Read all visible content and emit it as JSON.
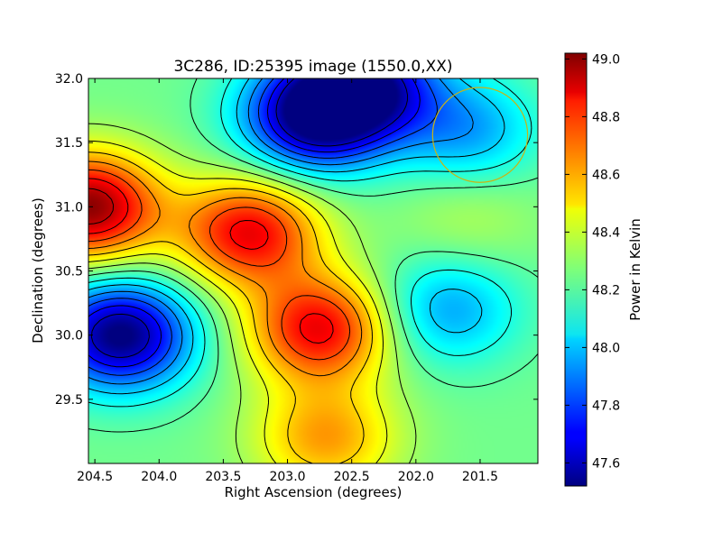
{
  "chart_data": {
    "type": "heatmap",
    "title": "3C286, ID:25395 image (1550.0,XX)",
    "xlabel": "Right Ascension (degrees)",
    "ylabel": "Declination (degrees)",
    "xlim": [
      204.55,
      201.05
    ],
    "ylim": [
      29.0,
      32.0
    ],
    "x_ticks": [
      {
        "value": 204.5,
        "label": "204.5"
      },
      {
        "value": 204.0,
        "label": "204.0"
      },
      {
        "value": 203.5,
        "label": "203.5"
      },
      {
        "value": 203.0,
        "label": "203.0"
      },
      {
        "value": 202.5,
        "label": "202.5"
      },
      {
        "value": 202.0,
        "label": "202.0"
      },
      {
        "value": 201.5,
        "label": "201.5"
      }
    ],
    "y_ticks": [
      {
        "value": 29.5,
        "label": "29.5"
      },
      {
        "value": 30.0,
        "label": "30.0"
      },
      {
        "value": 30.5,
        "label": "30.5"
      },
      {
        "value": 31.0,
        "label": "31.0"
      },
      {
        "value": 31.5,
        "label": "31.5"
      },
      {
        "value": 32.0,
        "label": "32.0"
      }
    ],
    "colorbar": {
      "label": "Power in Kelvin",
      "range": [
        47.52,
        49.02
      ],
      "colormap": "jet",
      "ticks": [
        {
          "value": 47.6,
          "label": "47.6"
        },
        {
          "value": 47.8,
          "label": "47.8"
        },
        {
          "value": 48.0,
          "label": "48.0"
        },
        {
          "value": 48.2,
          "label": "48.2"
        },
        {
          "value": 48.4,
          "label": "48.4"
        },
        {
          "value": 48.6,
          "label": "48.6"
        },
        {
          "value": 48.8,
          "label": "48.8"
        },
        {
          "value": 49.0,
          "label": "49.0"
        }
      ]
    },
    "base_level": 48.25,
    "features": [
      {
        "kind": "max",
        "ra": 204.55,
        "dec": 31.0,
        "peak": 49.0
      },
      {
        "kind": "max",
        "ra": 203.3,
        "dec": 30.8,
        "peak": 48.85
      },
      {
        "kind": "max",
        "ra": 202.75,
        "dec": 30.05,
        "peak": 48.85
      },
      {
        "kind": "max",
        "ra": 202.7,
        "dec": 29.2,
        "peak": 48.6
      },
      {
        "kind": "min",
        "ra": 204.3,
        "dec": 30.0,
        "peak": 47.5
      },
      {
        "kind": "min",
        "ra": 202.8,
        "dec": 31.7,
        "peak": 47.55
      },
      {
        "kind": "min",
        "ra": 202.4,
        "dec": 31.95,
        "peak": 47.6
      },
      {
        "kind": "min",
        "ra": 201.75,
        "dec": 30.2,
        "peak": 47.95
      },
      {
        "kind": "min",
        "ra": 201.6,
        "dec": 31.6,
        "peak": 47.95
      },
      {
        "kind": "max",
        "ra": 201.6,
        "dec": 30.9,
        "peak": 48.35
      }
    ],
    "contour_levels": [
      47.62,
      47.72,
      47.82,
      47.92,
      48.02,
      48.12,
      48.22,
      48.32,
      48.42,
      48.52,
      48.62,
      48.72,
      48.82,
      48.92
    ],
    "annotations": [
      {
        "shape": "circle",
        "ra": 201.5,
        "dec": 31.56,
        "radius_deg": 0.37,
        "color": "#c8b414"
      }
    ],
    "grid": false,
    "colors": {
      "contour": "#000000",
      "circle": "#c8b414"
    }
  }
}
